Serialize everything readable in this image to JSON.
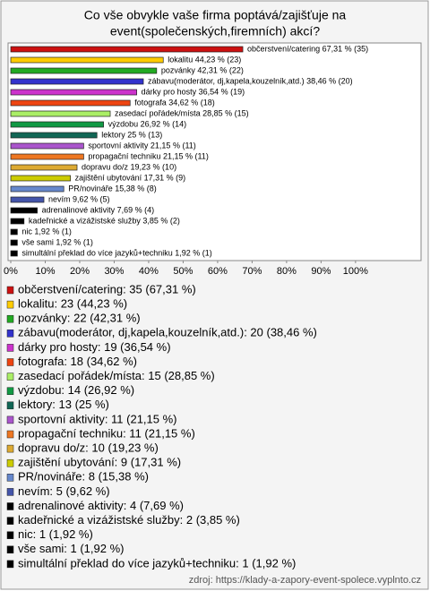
{
  "chart_data": {
    "type": "barh",
    "title": [
      "Co vše obvykle vaše firma poptává/zajišťuje na",
      "event(společenských,firemních) akcí?"
    ],
    "categories": [
      "občerstvení/catering",
      "lokalitu",
      "pozvánky",
      "zábavu(moderátor, dj,kapela,kouzelník,atd.)",
      "dárky pro hosty",
      "fotografa",
      "zasedací pořádek/místa",
      "výzdobu",
      "lektory",
      "sportovní aktivity",
      "propagační techniku",
      "dopravu do/z",
      "zajištění ubytování",
      "PR/novináře",
      "nevím",
      "adrenalinové aktivity",
      "kadeřnické a vizážistské služby",
      "nic",
      "vše sami",
      "simultální překlad do více jazyků+techniku"
    ],
    "values": [
      67.31,
      44.23,
      42.31,
      38.46,
      36.54,
      34.62,
      28.85,
      26.92,
      25,
      21.15,
      21.15,
      19.23,
      17.31,
      15.38,
      9.62,
      7.69,
      3.85,
      1.92,
      1.92,
      1.92
    ],
    "counts": [
      35,
      23,
      22,
      20,
      19,
      18,
      15,
      14,
      13,
      11,
      11,
      10,
      9,
      8,
      5,
      4,
      2,
      1,
      1,
      1
    ],
    "value_labels": [
      "občerstvení/catering 67,31 % (35)",
      "lokalitu 44,23 % (23)",
      "pozvánky 42,31 % (22)",
      "zábavu(moderátor, dj,kapela,kouzelník,atd.) 38,46 % (20)",
      "dárky pro hosty 36,54 % (19)",
      "fotografa 34,62 % (18)",
      "zasedací pořádek/místa 28,85 % (15)",
      "výzdobu 26,92 % (14)",
      "lektory 25 % (13)",
      "sportovní aktivity 21,15 % (11)",
      "propagační techniku 21,15 % (11)",
      "dopravu do/z 19,23 % (10)",
      "zajištění ubytování 17,31 % (9)",
      "PR/novináře 15,38 % (8)",
      "nevím 9,62 % (5)",
      "adrenalinové aktivity 7,69 % (4)",
      "kadeřnické a vizážistské služby 3,85 % (2)",
      "nic 1,92 % (1)",
      "vše sami 1,92 % (1)",
      "simultální překlad do více jazyků+techniku 1,92 % (1)"
    ],
    "legend_labels": [
      "občerstvení/catering: 35 (67,31 %)",
      "lokalitu: 23 (44,23 %)",
      "pozvánky: 22 (42,31 %)",
      "zábavu(moderátor, dj,kapela,kouzelník,atd.): 20 (38,46 %)",
      "dárky pro hosty: 19 (36,54 %)",
      "fotografa: 18 (34,62 %)",
      "zasedací pořádek/místa: 15 (28,85 %)",
      "výzdobu: 14 (26,92 %)",
      "lektory: 13 (25 %)",
      "sportovní aktivity: 11 (21,15 %)",
      "propagační techniku: 11 (21,15 %)",
      "dopravu do/z: 10 (19,23 %)",
      "zajištění ubytování: 9 (17,31 %)",
      "PR/novináře: 8 (15,38 %)",
      "nevím: 5 (9,62 %)",
      "adrenalinové aktivity: 4 (7,69 %)",
      "kadeřnické a vizážistské služby: 2 (3,85 %)",
      "nic: 1 (1,92 %)",
      "vše sami: 1 (1,92 %)",
      "simultální překlad do více jazyků+techniku: 1 (1,92 %)"
    ],
    "colors": [
      "#cc1111",
      "#ffcc00",
      "#22aa22",
      "#3333cc",
      "#cc33cc",
      "#ee4411",
      "#aaee66",
      "#119944",
      "#116655",
      "#aa55cc",
      "#ee7722",
      "#ddaa33",
      "#cccc00",
      "#6688cc",
      "#4455aa",
      "#000000",
      "#000000",
      "#000000",
      "#000000",
      "#000000"
    ],
    "xlim": [
      0,
      119
    ],
    "xticks": [
      {
        "value": 0,
        "label": "0%"
      },
      {
        "value": 10,
        "label": "10%"
      },
      {
        "value": 20,
        "label": "20%"
      },
      {
        "value": 30,
        "label": "30%"
      },
      {
        "value": 40,
        "label": "40%"
      },
      {
        "value": 50,
        "label": "50%"
      },
      {
        "value": 60,
        "label": "60%"
      },
      {
        "value": 70,
        "label": "70%"
      },
      {
        "value": 80,
        "label": "80%"
      },
      {
        "value": 90,
        "label": "90%"
      },
      {
        "value": 100,
        "label": "100%"
      }
    ],
    "source": "zdroj: https://klady-a-zapory-event-spolece.vyplnto.cz"
  }
}
